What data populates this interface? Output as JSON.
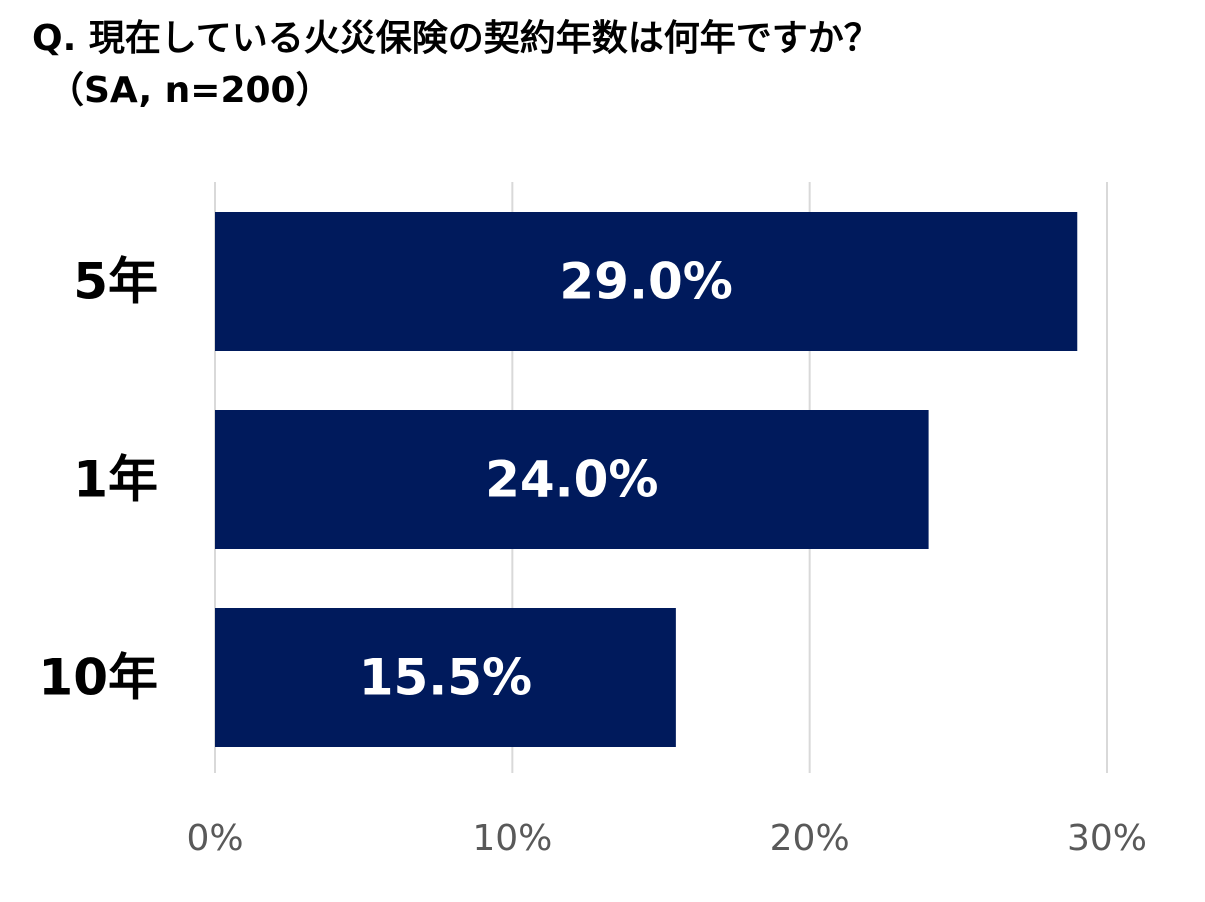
{
  "title": "Q. 現在している火災保険の契約年数は何年ですか？",
  "subtitle": "（SA, n=200）",
  "chart_data": {
    "type": "bar",
    "orientation": "horizontal",
    "title": "Q. 現在している火災保険の契約年数は何年ですか？",
    "subtitle": "（SA, n=200）",
    "categories": [
      "5年",
      "1年",
      "10年"
    ],
    "values": [
      29.0,
      24.0,
      15.5
    ],
    "value_labels": [
      "29.0%",
      "24.0%",
      "15.5%"
    ],
    "x_ticks": [
      0,
      10,
      20,
      30
    ],
    "x_tick_labels": [
      "0%",
      "10%",
      "20%",
      "30%"
    ],
    "xlim": [
      0,
      30
    ],
    "unit": "%",
    "grid": true,
    "legend": "none",
    "colors": {
      "bar": "#001a5c",
      "grid": "#d9d9d9",
      "value_label": "#ffffff",
      "category_label": "#000000",
      "tick_label": "#595959"
    }
  }
}
